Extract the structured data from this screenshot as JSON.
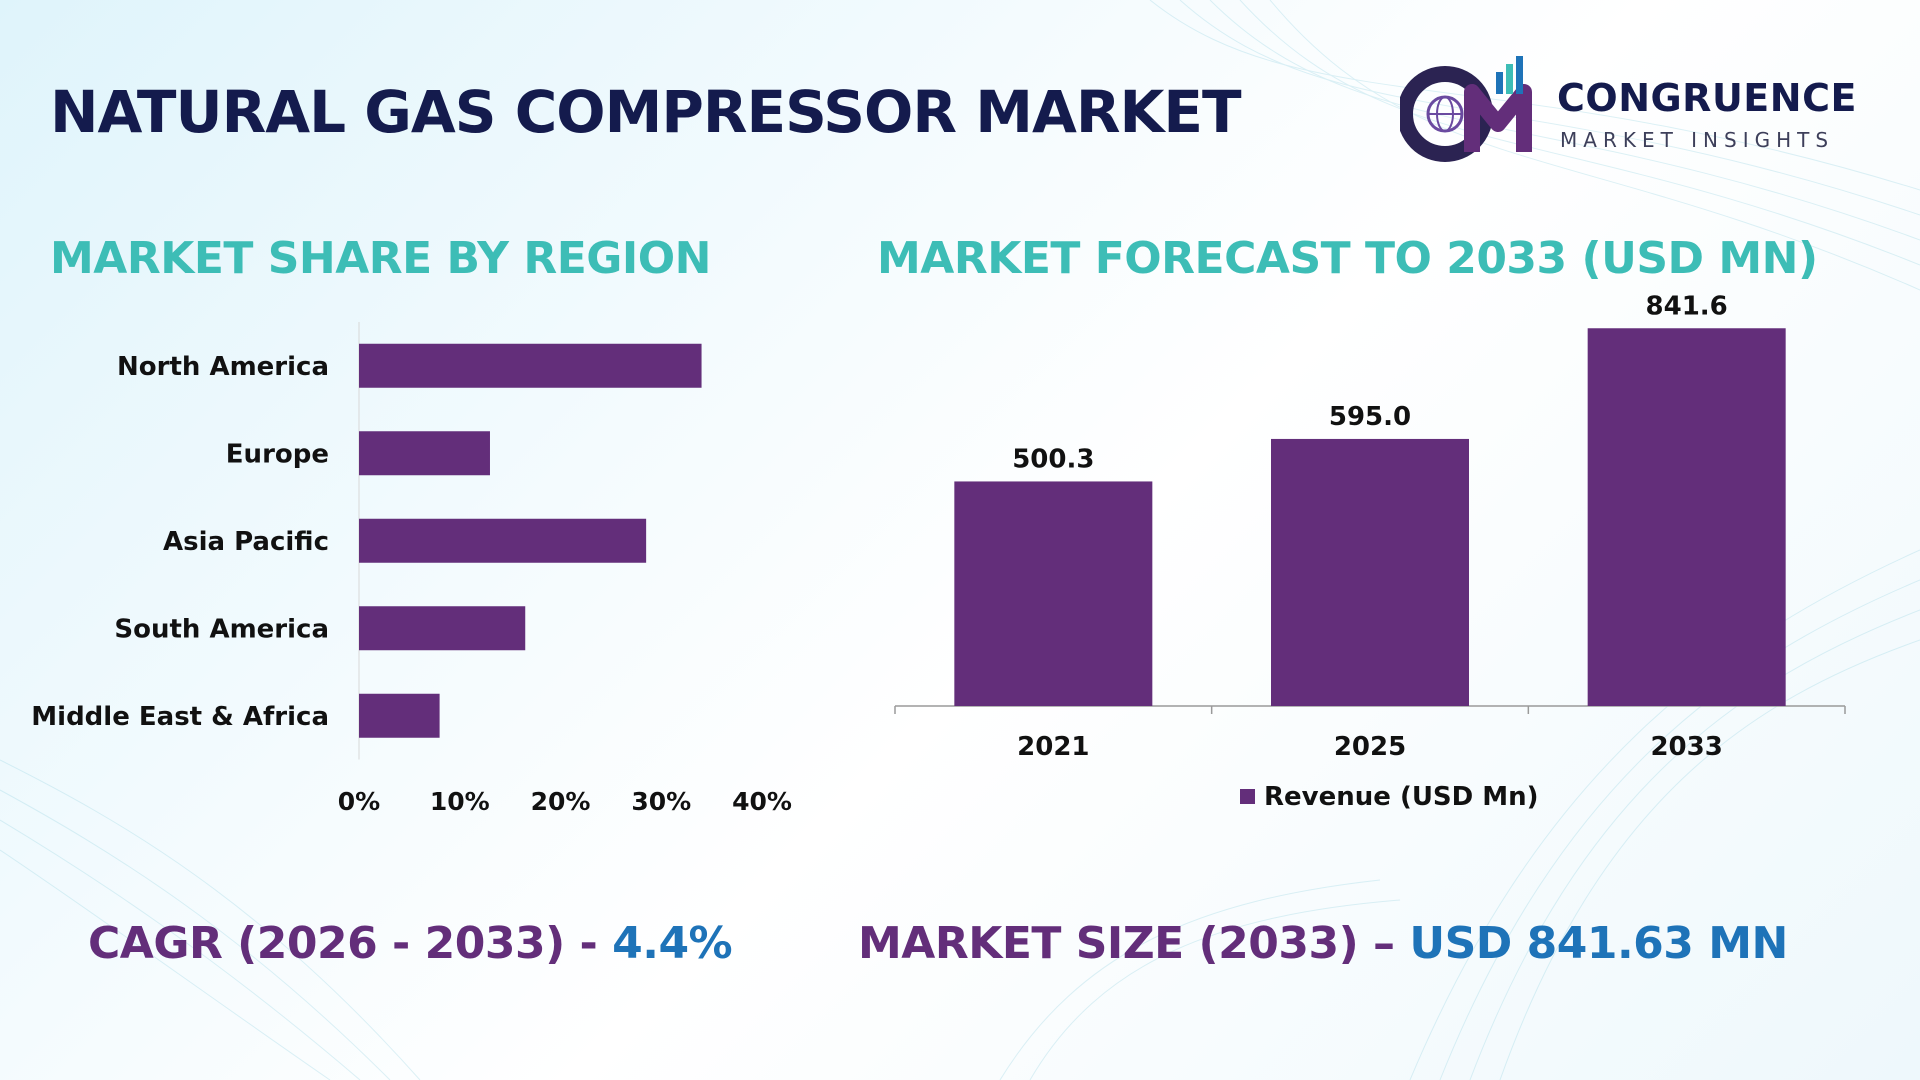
{
  "title": "NATURAL GAS COMPRESSOR MARKET",
  "logo": {
    "name": "CONGRUENCE",
    "tagline": "MARKET INSIGHTS",
    "mark_letters": "CM"
  },
  "colors": {
    "title": "#141b4d",
    "section_title": "#3dbdb6",
    "bar": "#632e7a",
    "stat_label": "#632e7a",
    "stat_value": "#1e73b8"
  },
  "chart_data": [
    {
      "type": "bar",
      "orientation": "horizontal",
      "title": "MARKET SHARE BY REGION",
      "categories": [
        "North America",
        "Europe",
        "Asia Pacific",
        "South America",
        "Middle East & Africa"
      ],
      "values": [
        34,
        13,
        28.5,
        16.5,
        8
      ],
      "xlim": [
        0,
        40
      ],
      "xticks": [
        "0%",
        "10%",
        "20%",
        "30%",
        "40%"
      ],
      "grid": false
    },
    {
      "type": "bar",
      "title": "MARKET FORECAST TO 2033 (USD MN)",
      "categories": [
        "2021",
        "2025",
        "2033"
      ],
      "series": [
        {
          "name": "Revenue (USD Mn)",
          "values": [
            500.3,
            595.0,
            841.6
          ],
          "labels": [
            "500.3",
            "595.0",
            "841.6"
          ]
        }
      ],
      "ylim": [
        0,
        860
      ],
      "legend": "bottom",
      "grid": false
    }
  ],
  "stats": {
    "cagr_label": "CAGR (2026 - 2033) - ",
    "cagr_value": "4.4%",
    "size_label": "MARKET SIZE (2033) – ",
    "size_value": "USD 841.63 MN"
  }
}
